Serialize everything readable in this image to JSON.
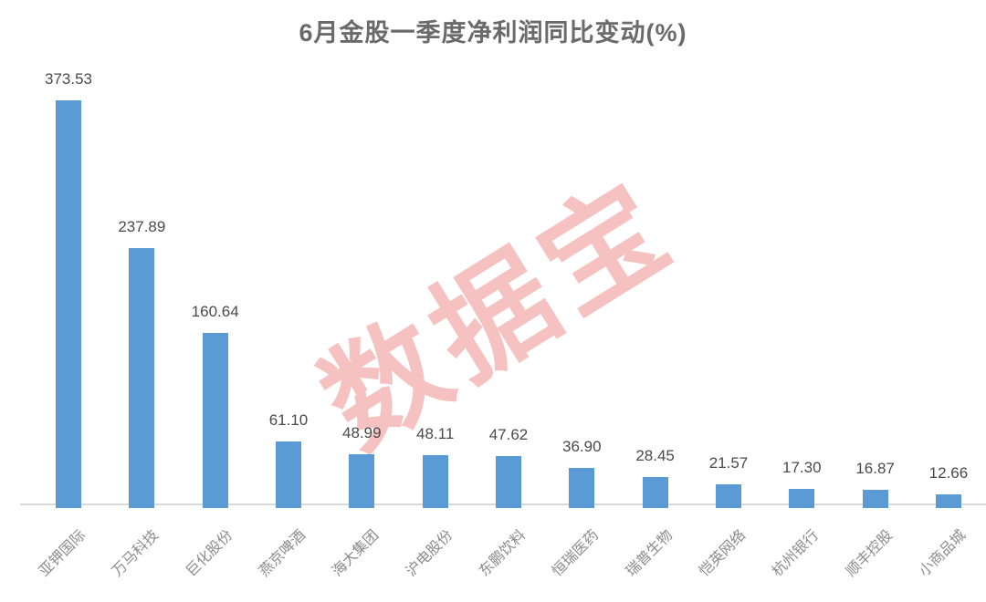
{
  "chart_data": {
    "type": "bar",
    "title": "6月金股一季度净利润同比变动(%)",
    "categories": [
      "亚钾国际",
      "万马科技",
      "巨化股份",
      "燕京啤酒",
      "海大集团",
      "沪电股份",
      "东鹏饮料",
      "恒瑞医药",
      "瑞普生物",
      "恺英网络",
      "杭州银行",
      "顺丰控股",
      "小商品城"
    ],
    "values": [
      373.53,
      237.89,
      160.64,
      61.1,
      48.99,
      48.11,
      47.62,
      36.9,
      28.45,
      21.57,
      17.3,
      16.87,
      12.66
    ],
    "value_labels": [
      "373.53",
      "237.89",
      "160.64",
      "61.10",
      "48.99",
      "48.11",
      "47.62",
      "36.90",
      "28.45",
      "21.57",
      "17.30",
      "16.87",
      "12.66"
    ],
    "xlabel": "",
    "ylabel": "",
    "ylim": [
      0,
      400
    ],
    "grid": false,
    "legend": false,
    "bar_color": "#5B9BD5",
    "axis_line_color": "#d9d9d9",
    "title_color": "#6a6a6a",
    "value_label_color": "#4a4a4a",
    "category_label_color": "#8c8c8c"
  },
  "watermark": {
    "text": "数据宝",
    "color": "#ee8f8f"
  }
}
